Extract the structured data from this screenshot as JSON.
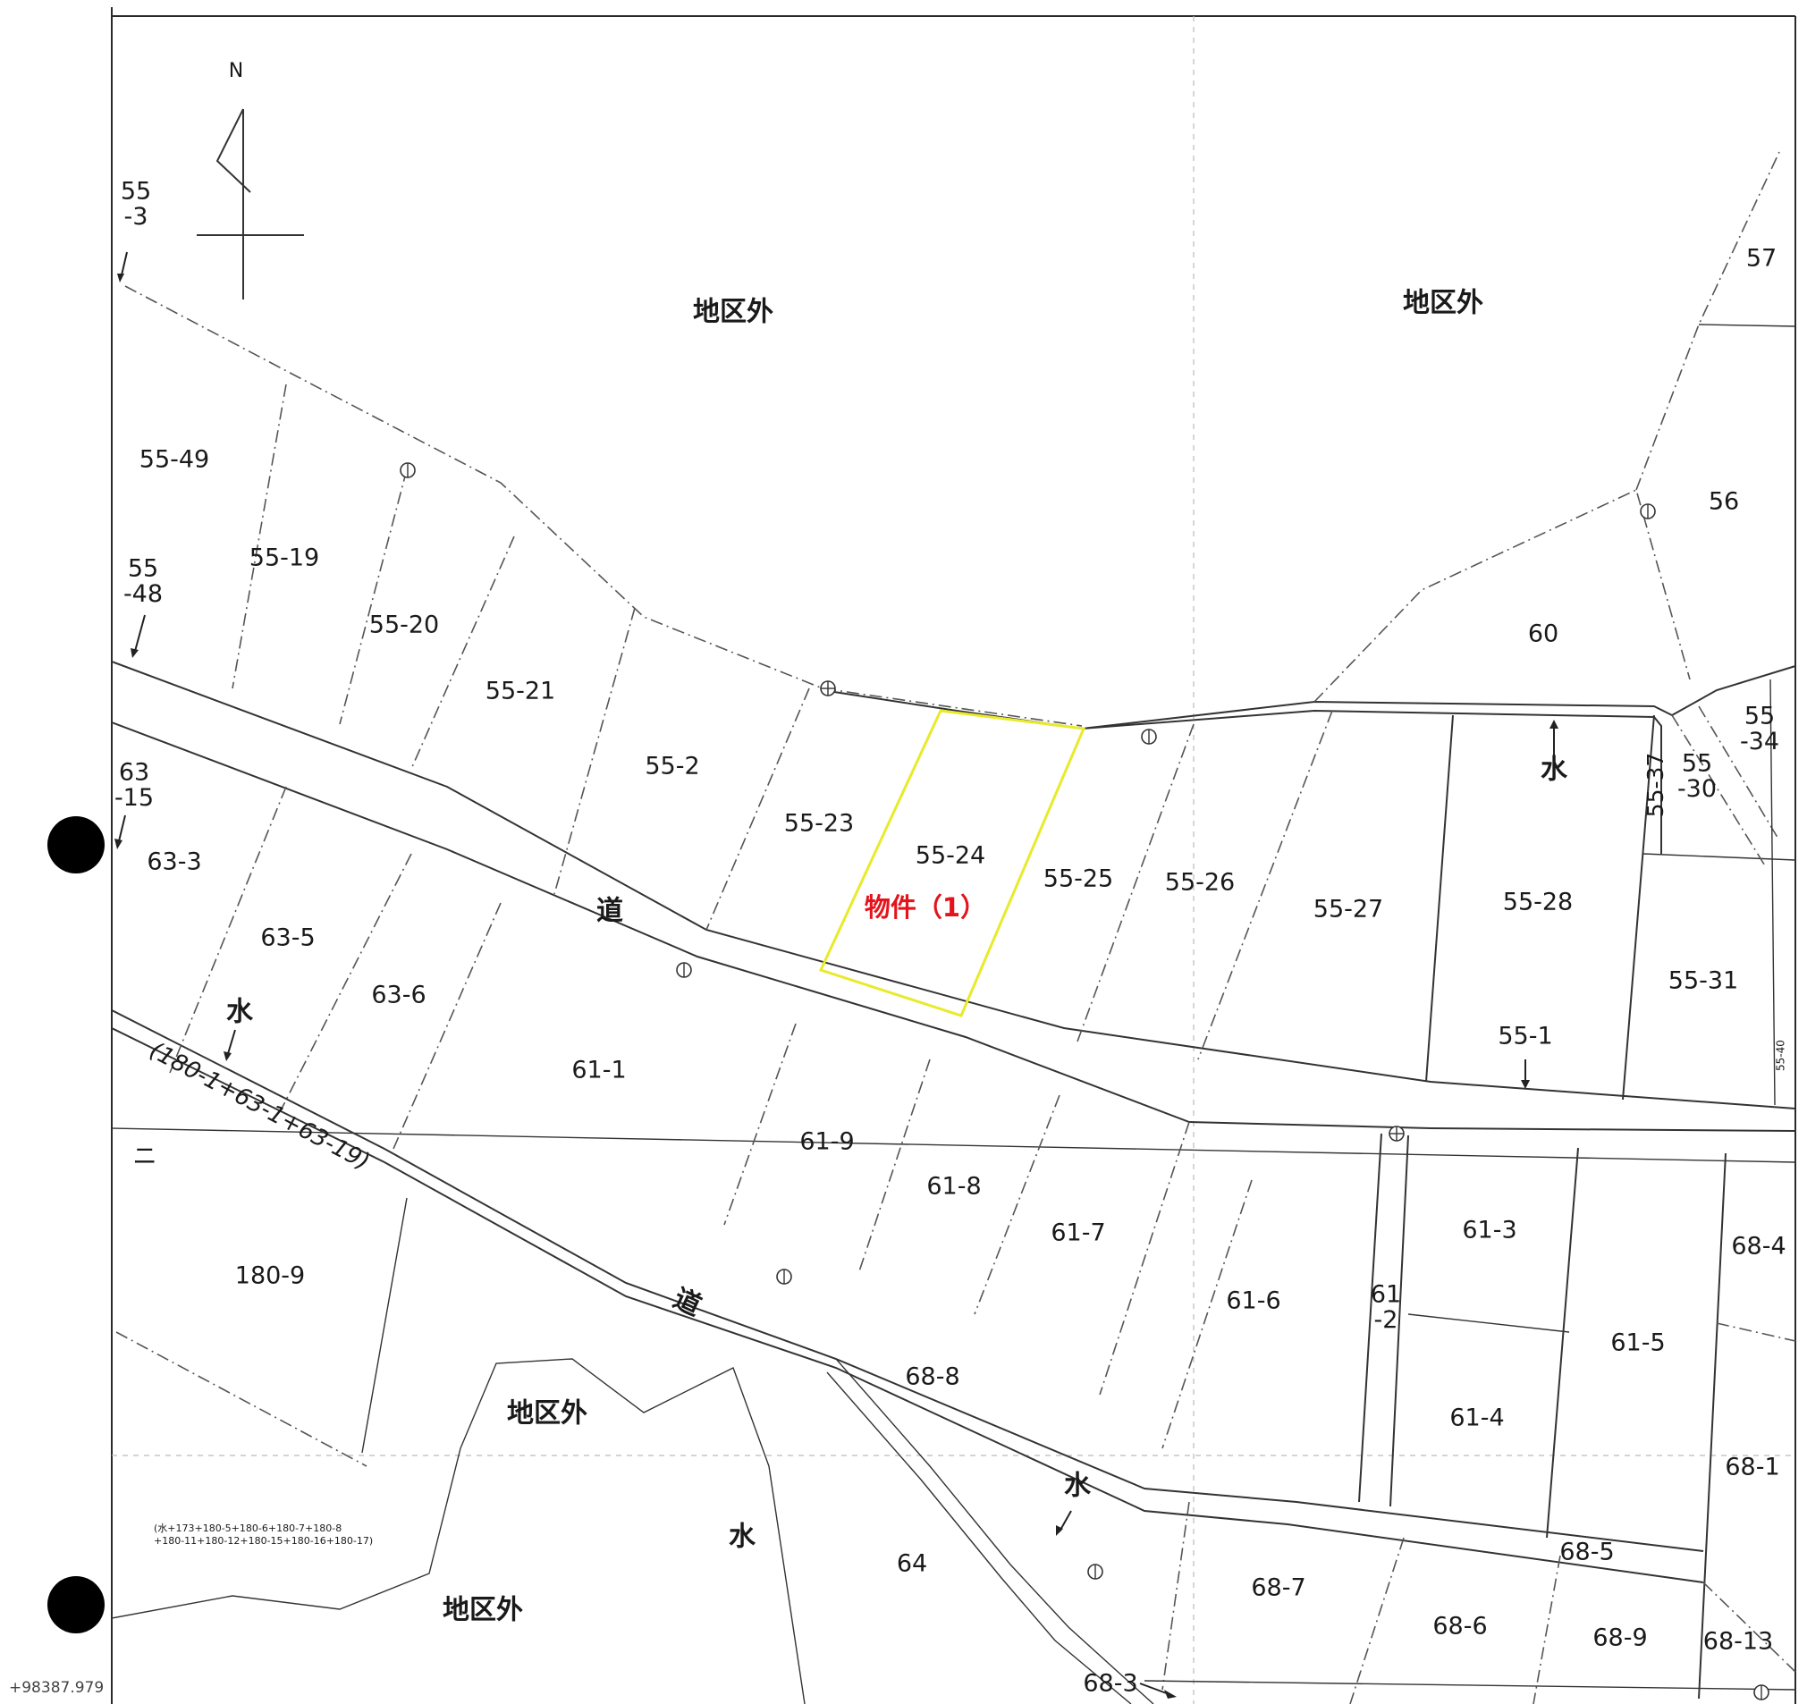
{
  "colors": {
    "subject_outline": "#e8ea2a",
    "subject_label": "#e3141b",
    "line": "#333333"
  },
  "compass": {
    "north_label": "N"
  },
  "coordinate_label": "+98387.979",
  "subject": {
    "parcel": "55-24",
    "label": "物件（1）"
  },
  "outside_district": [
    "地区外",
    "地区外",
    "地区外",
    "地区外"
  ],
  "roads": [
    "道",
    "道"
  ],
  "waterways": [
    "水",
    "水",
    "水",
    "水"
  ],
  "road_annotation": "(180-1+63-1+63-19)",
  "water_annotation_line1": "(水+173+180-5+180-6+180-7+180-8",
  "water_annotation_line2": "+180-11+180-12+180-15+180-16+180-17)",
  "misc_mark": "ニ",
  "parcels": [
    "55\n-3",
    "55-49",
    "55-19",
    "55\n-48",
    "55-20",
    "55-21",
    "55-2",
    "55-23",
    "55-25",
    "55-26",
    "55-27",
    "55-28",
    "55\n-34",
    "55\n-30",
    "55-37",
    "55-31",
    "55-40",
    "55-1",
    "57",
    "56",
    "60",
    "63\n-15",
    "63-3",
    "63-5",
    "63-6",
    "61-1",
    "61-9",
    "61-8",
    "61-7",
    "61-6",
    "61-3",
    "61\n-2",
    "61-4",
    "61-5",
    "68-4",
    "68-1",
    "180-9",
    "68-8",
    "64",
    "68-7",
    "68-6",
    "68-9",
    "68-13",
    "68-5",
    "68-3"
  ]
}
